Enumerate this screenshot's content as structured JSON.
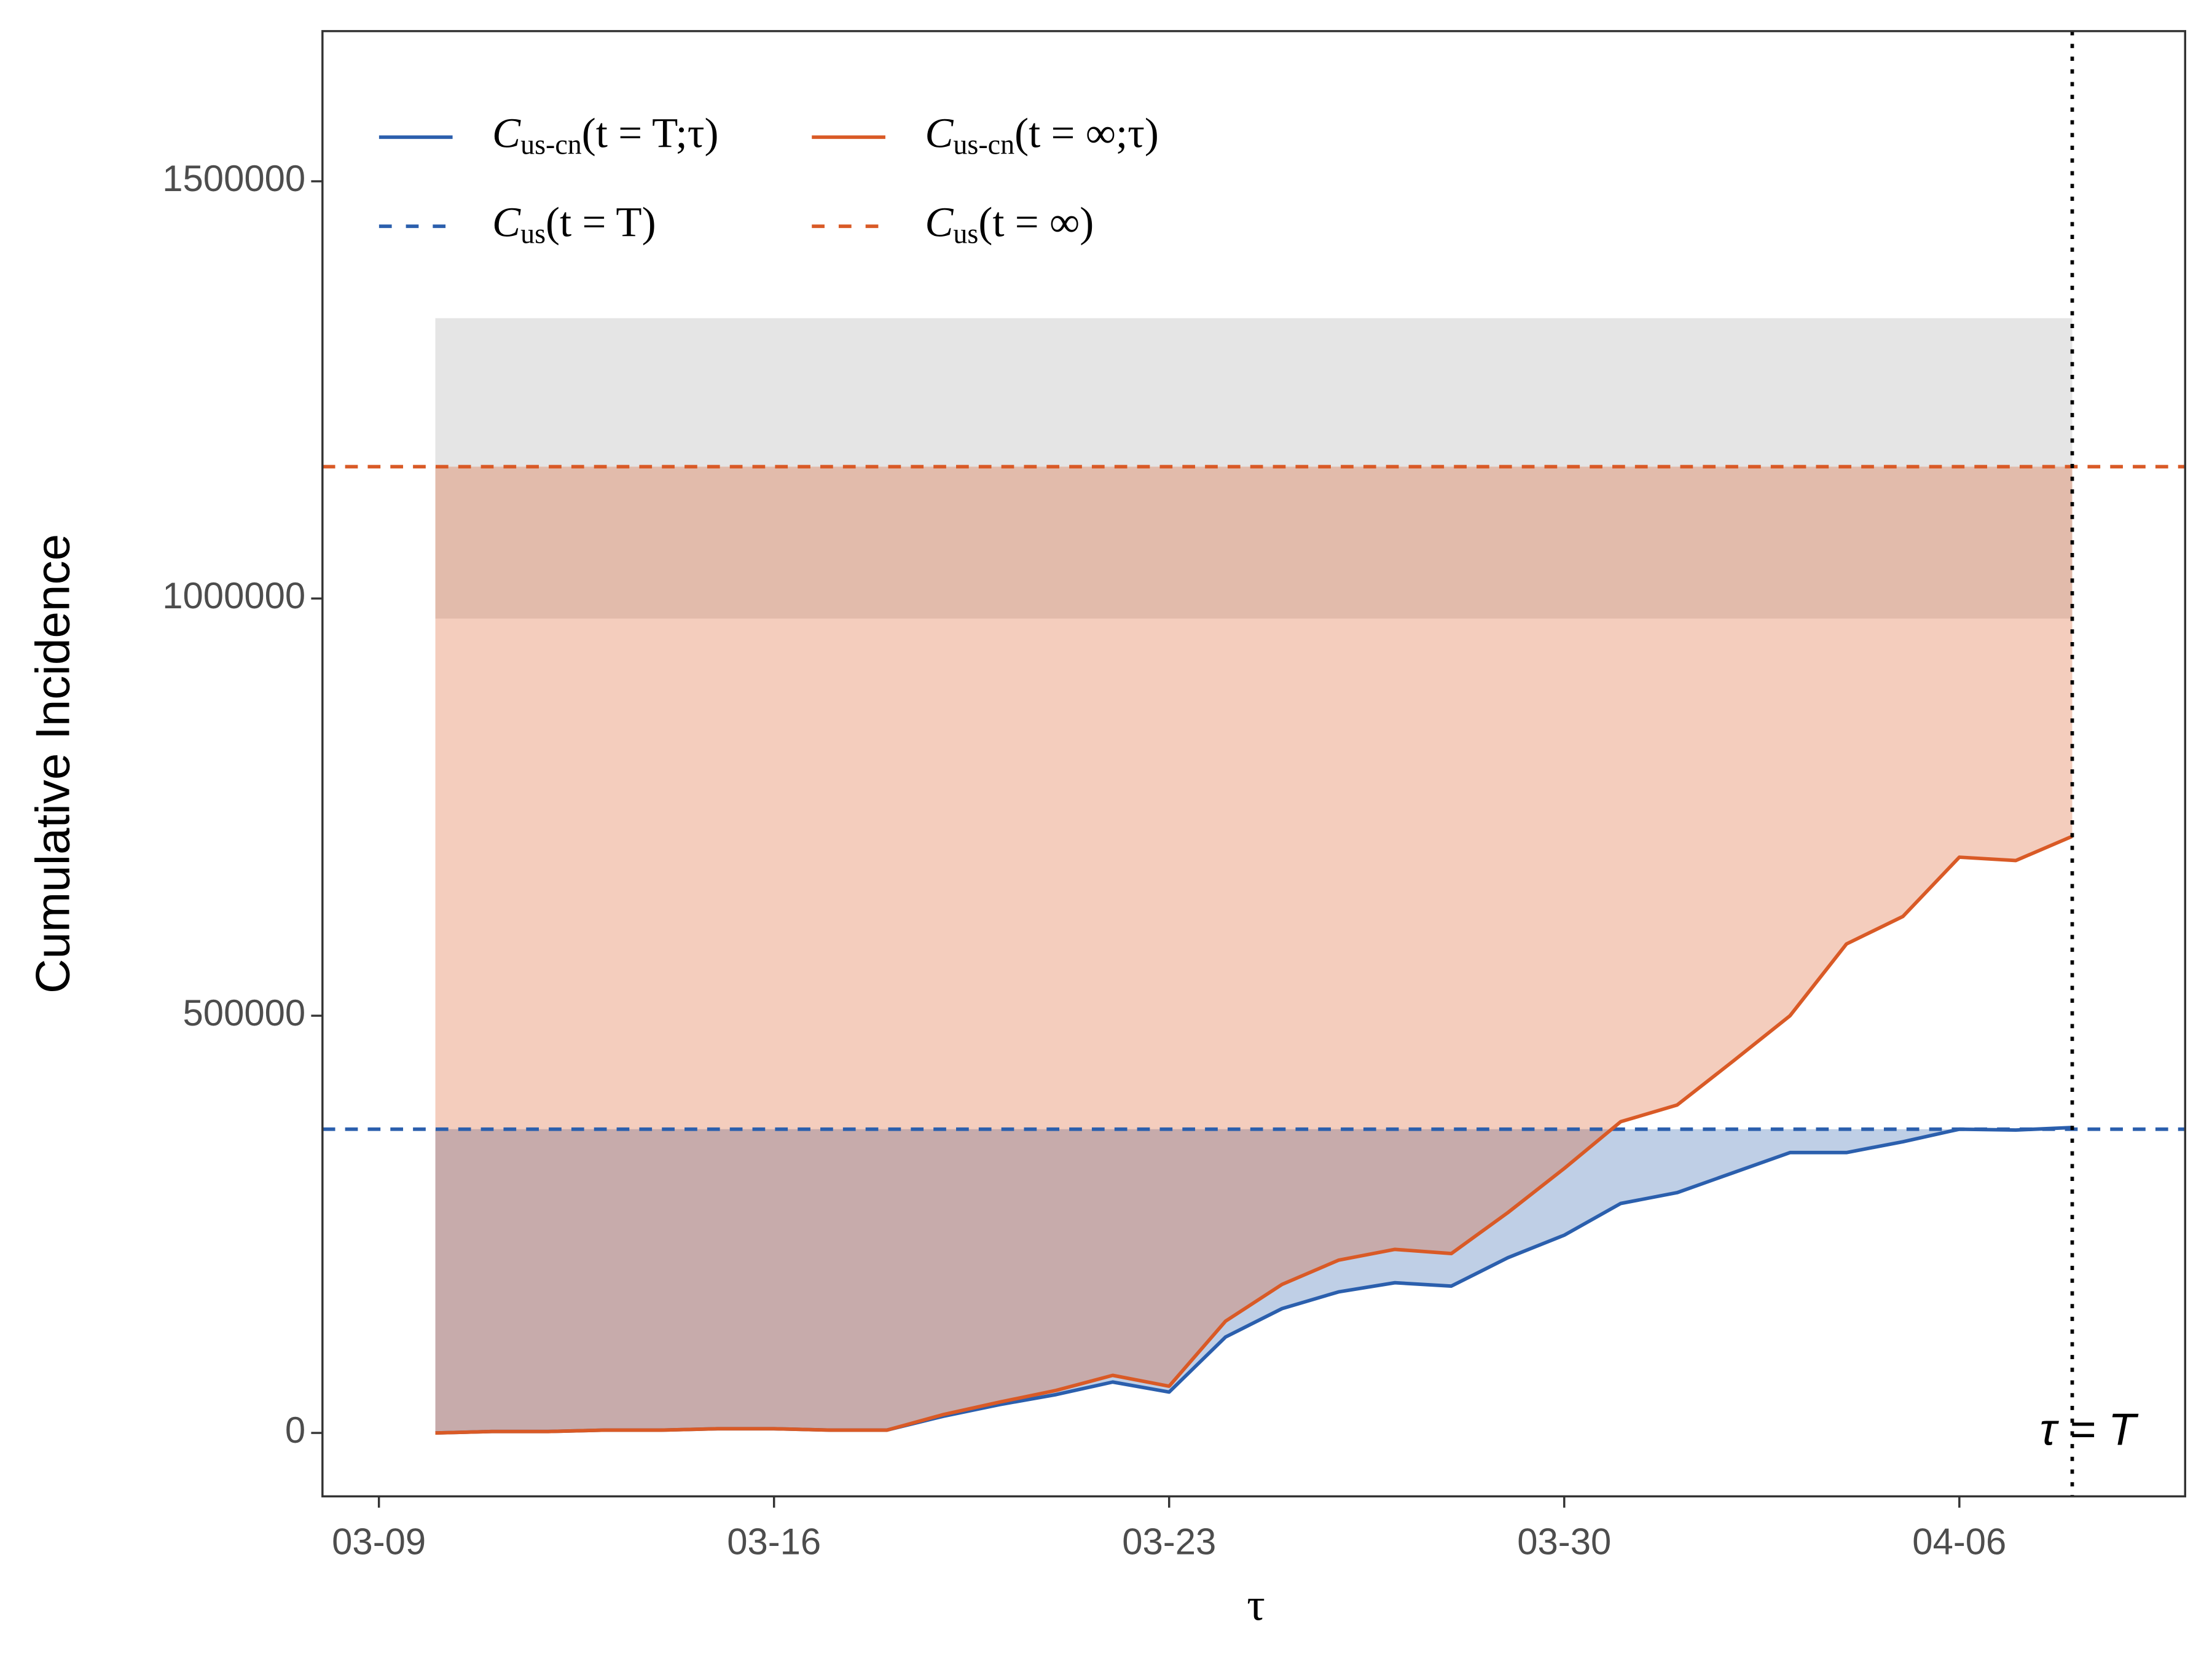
{
  "chart_data": {
    "type": "line",
    "xlabel": "τ",
    "ylabel": "Cumulative Incidence",
    "x": [
      "03-10",
      "03-11",
      "03-12",
      "03-13",
      "03-14",
      "03-15",
      "03-16",
      "03-17",
      "03-18",
      "03-19",
      "03-20",
      "03-21",
      "03-22",
      "03-23",
      "03-24",
      "03-25",
      "03-26",
      "03-27",
      "03-28",
      "03-29",
      "03-30",
      "03-31",
      "04-01",
      "04-02",
      "04-03",
      "04-04",
      "04-05",
      "04-06",
      "04-07",
      "04-08"
    ],
    "xlim": [
      "03-08",
      "04-10"
    ],
    "xticks": [
      "03-09",
      "03-16",
      "03-23",
      "03-30",
      "04-06"
    ],
    "ylim": [
      -76000,
      1680000
    ],
    "yticks": [
      0,
      500000,
      1000000,
      1500000
    ],
    "grid": false,
    "legend": "top-left",
    "band": [
      976000,
      1336000
    ],
    "band_color": "#cccccc",
    "series": [
      {
        "name": "C",
        "subscript": "us-cn",
        "argument": "(t = T;τ)",
        "color": "#2b5fad",
        "style": "solid",
        "values": [
          0,
          1700,
          1700,
          3400,
          3400,
          5000,
          5000,
          3400,
          3400,
          20000,
          34000,
          46000,
          61000,
          49000,
          115000,
          149000,
          169000,
          180000,
          176000,
          210000,
          237000,
          275000,
          288000,
          312000,
          336000,
          336000,
          349000,
          364000,
          363000,
          366000
        ]
      },
      {
        "name": "C",
        "subscript": "us",
        "argument": "(t = T)",
        "color": "#2b5fad",
        "style": "dashed",
        "value": 364000
      },
      {
        "name": "C",
        "subscript": "us-cn",
        "argument": "(t = ∞;τ)",
        "color": "#d95a26",
        "style": "solid",
        "values": [
          0,
          1700,
          1700,
          3400,
          3400,
          5000,
          5000,
          3400,
          3400,
          22000,
          37000,
          51000,
          69000,
          56000,
          134000,
          178000,
          207000,
          220000,
          215000,
          264000,
          317000,
          373000,
          393000,
          446000,
          500000,
          586000,
          619000,
          690000,
          686000,
          715000
        ]
      },
      {
        "name": "C",
        "subscript": "us",
        "argument": "(t = ∞)",
        "color": "#d95a26",
        "style": "dashed",
        "value": 1158000
      }
    ],
    "vline": {
      "x": "04-08",
      "label": "τ = T"
    }
  }
}
